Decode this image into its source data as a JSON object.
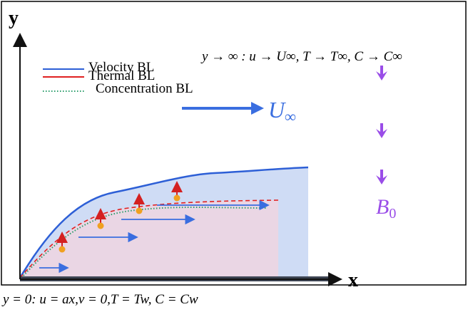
{
  "axes": {
    "y": "y",
    "x": "x"
  },
  "legend": [
    {
      "label": "Velocity BL"
    },
    {
      "label": "Thermal BL"
    },
    {
      "label": "Concentration BL"
    }
  ],
  "far_field": "y → ∞ : u → U∞, T → T∞, C → C∞",
  "free_stream": {
    "symbol": "U",
    "subscript": "∞"
  },
  "magnetic_field": {
    "symbol": "B",
    "subscript": "0"
  },
  "caption": "y = 0: u = ax,v = 0,T = Tw, C = Cw"
}
